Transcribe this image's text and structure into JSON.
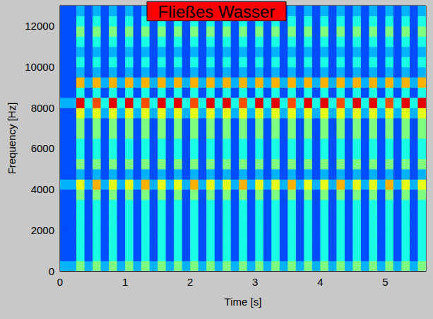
{
  "chart_data": {
    "type": "heatmap",
    "title": "Fließes Wasser",
    "x_label": "Time [s]",
    "y_label": "Frequency [Hz]",
    "xlim": [
      0,
      5.625
    ],
    "ylim": [
      0,
      13000
    ],
    "xticks": [
      0,
      1,
      2,
      3,
      4,
      5
    ],
    "yticks": [
      0,
      2000,
      4000,
      6000,
      8000,
      10000,
      12000
    ],
    "grid": false,
    "value_range": [
      0,
      10
    ],
    "x_bins": [
      0,
      0.125,
      0.25,
      0.375,
      0.5,
      0.625,
      0.75,
      0.875,
      1,
      1.125,
      1.25,
      1.375,
      1.5,
      1.625,
      1.75,
      1.875,
      2,
      2.125,
      2.25,
      2.375,
      2.5,
      2.625,
      2.75,
      2.875,
      3,
      3.125,
      3.25,
      3.375,
      3.5,
      3.625,
      3.75,
      3.875,
      4,
      4.125,
      4.25,
      4.375,
      4.5,
      4.625,
      4.75,
      4.875,
      5,
      5.125,
      5.25,
      5.375,
      5.5,
      5.625
    ],
    "y_bins": [
      0,
      500,
      1000,
      1500,
      2000,
      2500,
      3000,
      3500,
      4000,
      4500,
      5000,
      5500,
      6000,
      6500,
      7000,
      7500,
      8000,
      8500,
      9000,
      9500,
      10000,
      10500,
      11000,
      11500,
      12000,
      12500,
      13000
    ],
    "cells": [
      [
        3,
        3,
        5,
        3,
        5,
        3,
        5,
        3,
        5,
        3,
        5,
        3,
        5,
        3,
        5,
        3,
        5,
        3,
        5,
        3,
        5,
        3,
        5,
        3,
        5,
        3,
        5,
        3,
        5,
        3,
        5,
        3,
        5,
        3,
        5,
        3,
        5,
        3,
        5,
        3,
        5,
        3,
        5,
        3,
        5
      ],
      [
        2,
        2,
        4,
        2,
        4,
        2,
        4,
        2,
        4,
        2,
        4,
        2,
        4,
        2,
        4,
        2,
        4,
        2,
        4,
        2,
        4,
        2,
        4,
        2,
        4,
        2,
        4,
        2,
        4,
        2,
        4,
        2,
        4,
        2,
        4,
        2,
        4,
        2,
        4,
        2,
        4,
        2,
        4,
        2,
        4
      ],
      [
        2,
        2,
        4,
        2,
        4,
        2,
        4,
        2,
        4,
        2,
        4,
        2,
        4,
        2,
        4,
        2,
        4,
        2,
        4,
        2,
        4,
        2,
        4,
        2,
        4,
        2,
        4,
        2,
        4,
        2,
        4,
        2,
        4,
        2,
        4,
        2,
        4,
        2,
        4,
        2,
        4,
        2,
        4,
        2,
        4
      ],
      [
        2,
        2,
        4,
        2,
        4,
        2,
        4,
        2,
        4,
        2,
        4,
        2,
        4,
        2,
        4,
        2,
        4,
        2,
        4,
        2,
        4,
        2,
        4,
        2,
        4,
        2,
        4,
        2,
        4,
        2,
        4,
        2,
        4,
        2,
        4,
        2,
        4,
        2,
        4,
        2,
        4,
        2,
        4,
        2,
        4
      ],
      [
        2,
        2,
        4,
        2,
        4,
        2,
        4,
        2,
        4,
        2,
        4,
        2,
        4,
        2,
        4,
        2,
        4,
        2,
        4,
        2,
        4,
        2,
        4,
        2,
        4,
        2,
        4,
        2,
        4,
        2,
        4,
        2,
        4,
        2,
        4,
        2,
        4,
        2,
        4,
        2,
        4,
        2,
        4,
        2,
        4
      ],
      [
        2,
        2,
        4,
        2,
        4,
        2,
        4,
        2,
        4,
        2,
        4,
        2,
        4,
        2,
        4,
        2,
        4,
        2,
        4,
        2,
        4,
        2,
        4,
        2,
        4,
        2,
        4,
        2,
        4,
        2,
        4,
        2,
        4,
        2,
        4,
        2,
        4,
        2,
        4,
        2,
        4,
        2,
        4,
        2,
        4
      ],
      [
        2,
        2,
        4,
        2,
        4,
        2,
        4,
        2,
        4,
        2,
        4,
        2,
        4,
        2,
        4,
        2,
        4,
        2,
        4,
        2,
        4,
        2,
        4,
        2,
        4,
        2,
        4,
        2,
        4,
        2,
        4,
        2,
        4,
        2,
        4,
        2,
        4,
        2,
        4,
        2,
        4,
        2,
        4,
        2,
        4
      ],
      [
        2,
        2,
        5,
        2,
        5,
        2,
        5,
        2,
        5,
        2,
        5,
        2,
        5,
        2,
        5,
        2,
        5,
        2,
        5,
        2,
        5,
        2,
        5,
        2,
        5,
        2,
        5,
        2,
        5,
        2,
        5,
        2,
        5,
        2,
        5,
        2,
        5,
        2,
        5,
        2,
        5,
        2,
        5,
        2,
        5
      ],
      [
        3,
        3,
        6,
        3,
        7,
        3,
        6,
        3,
        6,
        3,
        7,
        3,
        6,
        3,
        6,
        3,
        7,
        3,
        6,
        3,
        6,
        3,
        7,
        3,
        6,
        3,
        6,
        3,
        7,
        3,
        6,
        3,
        6,
        3,
        7,
        3,
        6,
        3,
        6,
        3,
        7,
        3,
        6,
        3,
        6
      ],
      [
        2,
        2,
        3,
        2,
        3,
        2,
        3,
        2,
        3,
        2,
        3,
        2,
        3,
        2,
        3,
        2,
        3,
        2,
        3,
        2,
        3,
        2,
        3,
        2,
        3,
        2,
        3,
        2,
        3,
        2,
        3,
        2,
        3,
        2,
        3,
        2,
        3,
        2,
        3,
        2,
        3,
        2,
        3,
        2,
        3
      ],
      [
        2,
        2,
        5,
        2,
        5,
        2,
        5,
        2,
        5,
        2,
        5,
        2,
        5,
        2,
        5,
        2,
        5,
        2,
        5,
        2,
        5,
        2,
        5,
        2,
        5,
        2,
        5,
        2,
        5,
        2,
        5,
        2,
        5,
        2,
        5,
        2,
        5,
        2,
        5,
        2,
        5,
        2,
        5,
        2,
        5
      ],
      [
        2,
        2,
        4,
        2,
        4,
        2,
        4,
        2,
        4,
        2,
        4,
        2,
        4,
        2,
        4,
        2,
        4,
        2,
        4,
        2,
        4,
        2,
        4,
        2,
        4,
        2,
        4,
        2,
        4,
        2,
        4,
        2,
        4,
        2,
        4,
        2,
        4,
        2,
        4,
        2,
        4,
        2,
        4,
        2,
        4
      ],
      [
        2,
        2,
        4,
        2,
        4,
        2,
        4,
        2,
        4,
        2,
        4,
        2,
        4,
        2,
        4,
        2,
        4,
        2,
        4,
        2,
        4,
        2,
        4,
        2,
        4,
        2,
        4,
        2,
        4,
        2,
        4,
        2,
        4,
        2,
        4,
        2,
        4,
        2,
        4,
        2,
        4,
        2,
        4,
        2,
        4
      ],
      [
        2,
        2,
        5,
        2,
        5,
        2,
        5,
        2,
        5,
        2,
        5,
        2,
        5,
        2,
        5,
        2,
        5,
        2,
        5,
        2,
        5,
        2,
        5,
        2,
        5,
        2,
        5,
        2,
        5,
        2,
        5,
        2,
        5,
        2,
        5,
        2,
        5,
        2,
        5,
        2,
        5,
        2,
        5,
        2,
        5
      ],
      [
        2,
        2,
        5,
        2,
        5,
        2,
        5,
        2,
        5,
        2,
        5,
        2,
        5,
        2,
        5,
        2,
        5,
        2,
        5,
        2,
        5,
        2,
        5,
        2,
        5,
        2,
        5,
        2,
        5,
        2,
        5,
        2,
        5,
        2,
        5,
        2,
        5,
        2,
        5,
        2,
        5,
        2,
        5,
        2,
        5
      ],
      [
        2,
        2,
        6,
        3,
        6,
        3,
        6,
        3,
        6,
        3,
        6,
        3,
        6,
        3,
        6,
        3,
        6,
        3,
        6,
        3,
        6,
        3,
        6,
        3,
        6,
        3,
        6,
        3,
        6,
        3,
        6,
        3,
        6,
        3,
        6,
        3,
        6,
        3,
        6,
        3,
        6,
        3,
        6,
        3,
        6
      ],
      [
        3,
        3,
        9,
        4,
        8,
        4,
        9,
        4,
        9,
        4,
        8,
        4,
        9,
        4,
        9,
        4,
        8,
        4,
        9,
        4,
        9,
        4,
        8,
        4,
        9,
        4,
        9,
        4,
        8,
        4,
        9,
        4,
        9,
        4,
        8,
        4,
        9,
        4,
        9,
        4,
        8,
        4,
        9,
        4,
        9
      ],
      [
        2,
        2,
        4,
        2,
        4,
        2,
        4,
        2,
        4,
        2,
        4,
        2,
        4,
        2,
        4,
        2,
        4,
        2,
        4,
        2,
        4,
        2,
        4,
        2,
        4,
        2,
        4,
        2,
        4,
        2,
        4,
        2,
        4,
        2,
        4,
        2,
        4,
        2,
        4,
        2,
        4,
        2,
        4,
        2,
        4
      ],
      [
        2,
        2,
        7,
        3,
        7,
        3,
        7,
        3,
        7,
        3,
        7,
        3,
        7,
        3,
        7,
        3,
        7,
        3,
        7,
        3,
        7,
        3,
        7,
        3,
        7,
        3,
        7,
        3,
        7,
        3,
        7,
        3,
        7,
        3,
        7,
        3,
        7,
        3,
        7,
        3,
        7,
        3,
        7,
        3,
        7
      ],
      [
        2,
        2,
        3,
        2,
        3,
        2,
        3,
        2,
        3,
        2,
        3,
        2,
        3,
        2,
        3,
        2,
        3,
        2,
        3,
        2,
        3,
        2,
        3,
        2,
        3,
        2,
        3,
        2,
        3,
        2,
        3,
        2,
        3,
        2,
        3,
        2,
        3,
        2,
        3,
        2,
        3,
        2,
        3,
        2,
        3
      ],
      [
        2,
        2,
        4,
        2,
        4,
        2,
        4,
        2,
        4,
        2,
        4,
        2,
        4,
        2,
        4,
        2,
        4,
        2,
        4,
        2,
        4,
        2,
        4,
        2,
        4,
        2,
        4,
        2,
        4,
        2,
        4,
        2,
        4,
        2,
        4,
        2,
        4,
        2,
        4,
        2,
        4,
        2,
        4,
        2,
        4
      ],
      [
        2,
        2,
        3,
        2,
        3,
        2,
        3,
        2,
        3,
        2,
        3,
        2,
        3,
        2,
        3,
        2,
        3,
        2,
        3,
        2,
        3,
        2,
        3,
        2,
        3,
        2,
        3,
        2,
        3,
        2,
        3,
        2,
        3,
        2,
        3,
        2,
        3,
        2,
        3,
        2,
        3,
        2,
        3,
        2,
        3
      ],
      [
        2,
        2,
        4,
        2,
        4,
        2,
        4,
        2,
        4,
        2,
        4,
        2,
        4,
        2,
        4,
        2,
        4,
        2,
        4,
        2,
        4,
        2,
        4,
        2,
        4,
        2,
        4,
        2,
        4,
        2,
        4,
        2,
        4,
        2,
        4,
        2,
        4,
        2,
        4,
        2,
        4,
        2,
        4,
        2,
        4
      ],
      [
        2,
        2,
        5,
        2,
        5,
        2,
        5,
        2,
        5,
        2,
        5,
        2,
        5,
        2,
        5,
        2,
        5,
        2,
        5,
        2,
        5,
        2,
        5,
        2,
        5,
        2,
        5,
        2,
        5,
        2,
        5,
        2,
        5,
        2,
        5,
        2,
        5,
        2,
        5,
        2,
        5,
        2,
        5,
        2,
        5
      ],
      [
        2,
        2,
        4,
        2,
        4,
        2,
        4,
        2,
        4,
        2,
        4,
        2,
        4,
        2,
        4,
        2,
        4,
        2,
        4,
        2,
        4,
        2,
        4,
        2,
        4,
        2,
        4,
        2,
        4,
        2,
        4,
        2,
        4,
        2,
        4,
        2,
        4,
        2,
        4,
        2,
        4,
        2,
        4,
        2,
        4
      ],
      [
        2,
        2,
        3,
        2,
        3,
        2,
        3,
        2,
        3,
        2,
        3,
        2,
        3,
        2,
        3,
        2,
        3,
        2,
        3,
        2,
        3,
        2,
        3,
        2,
        3,
        2,
        3,
        2,
        3,
        2,
        3,
        2,
        3,
        2,
        3,
        2,
        3,
        2,
        3,
        2,
        3,
        2,
        3,
        2,
        3
      ]
    ]
  }
}
